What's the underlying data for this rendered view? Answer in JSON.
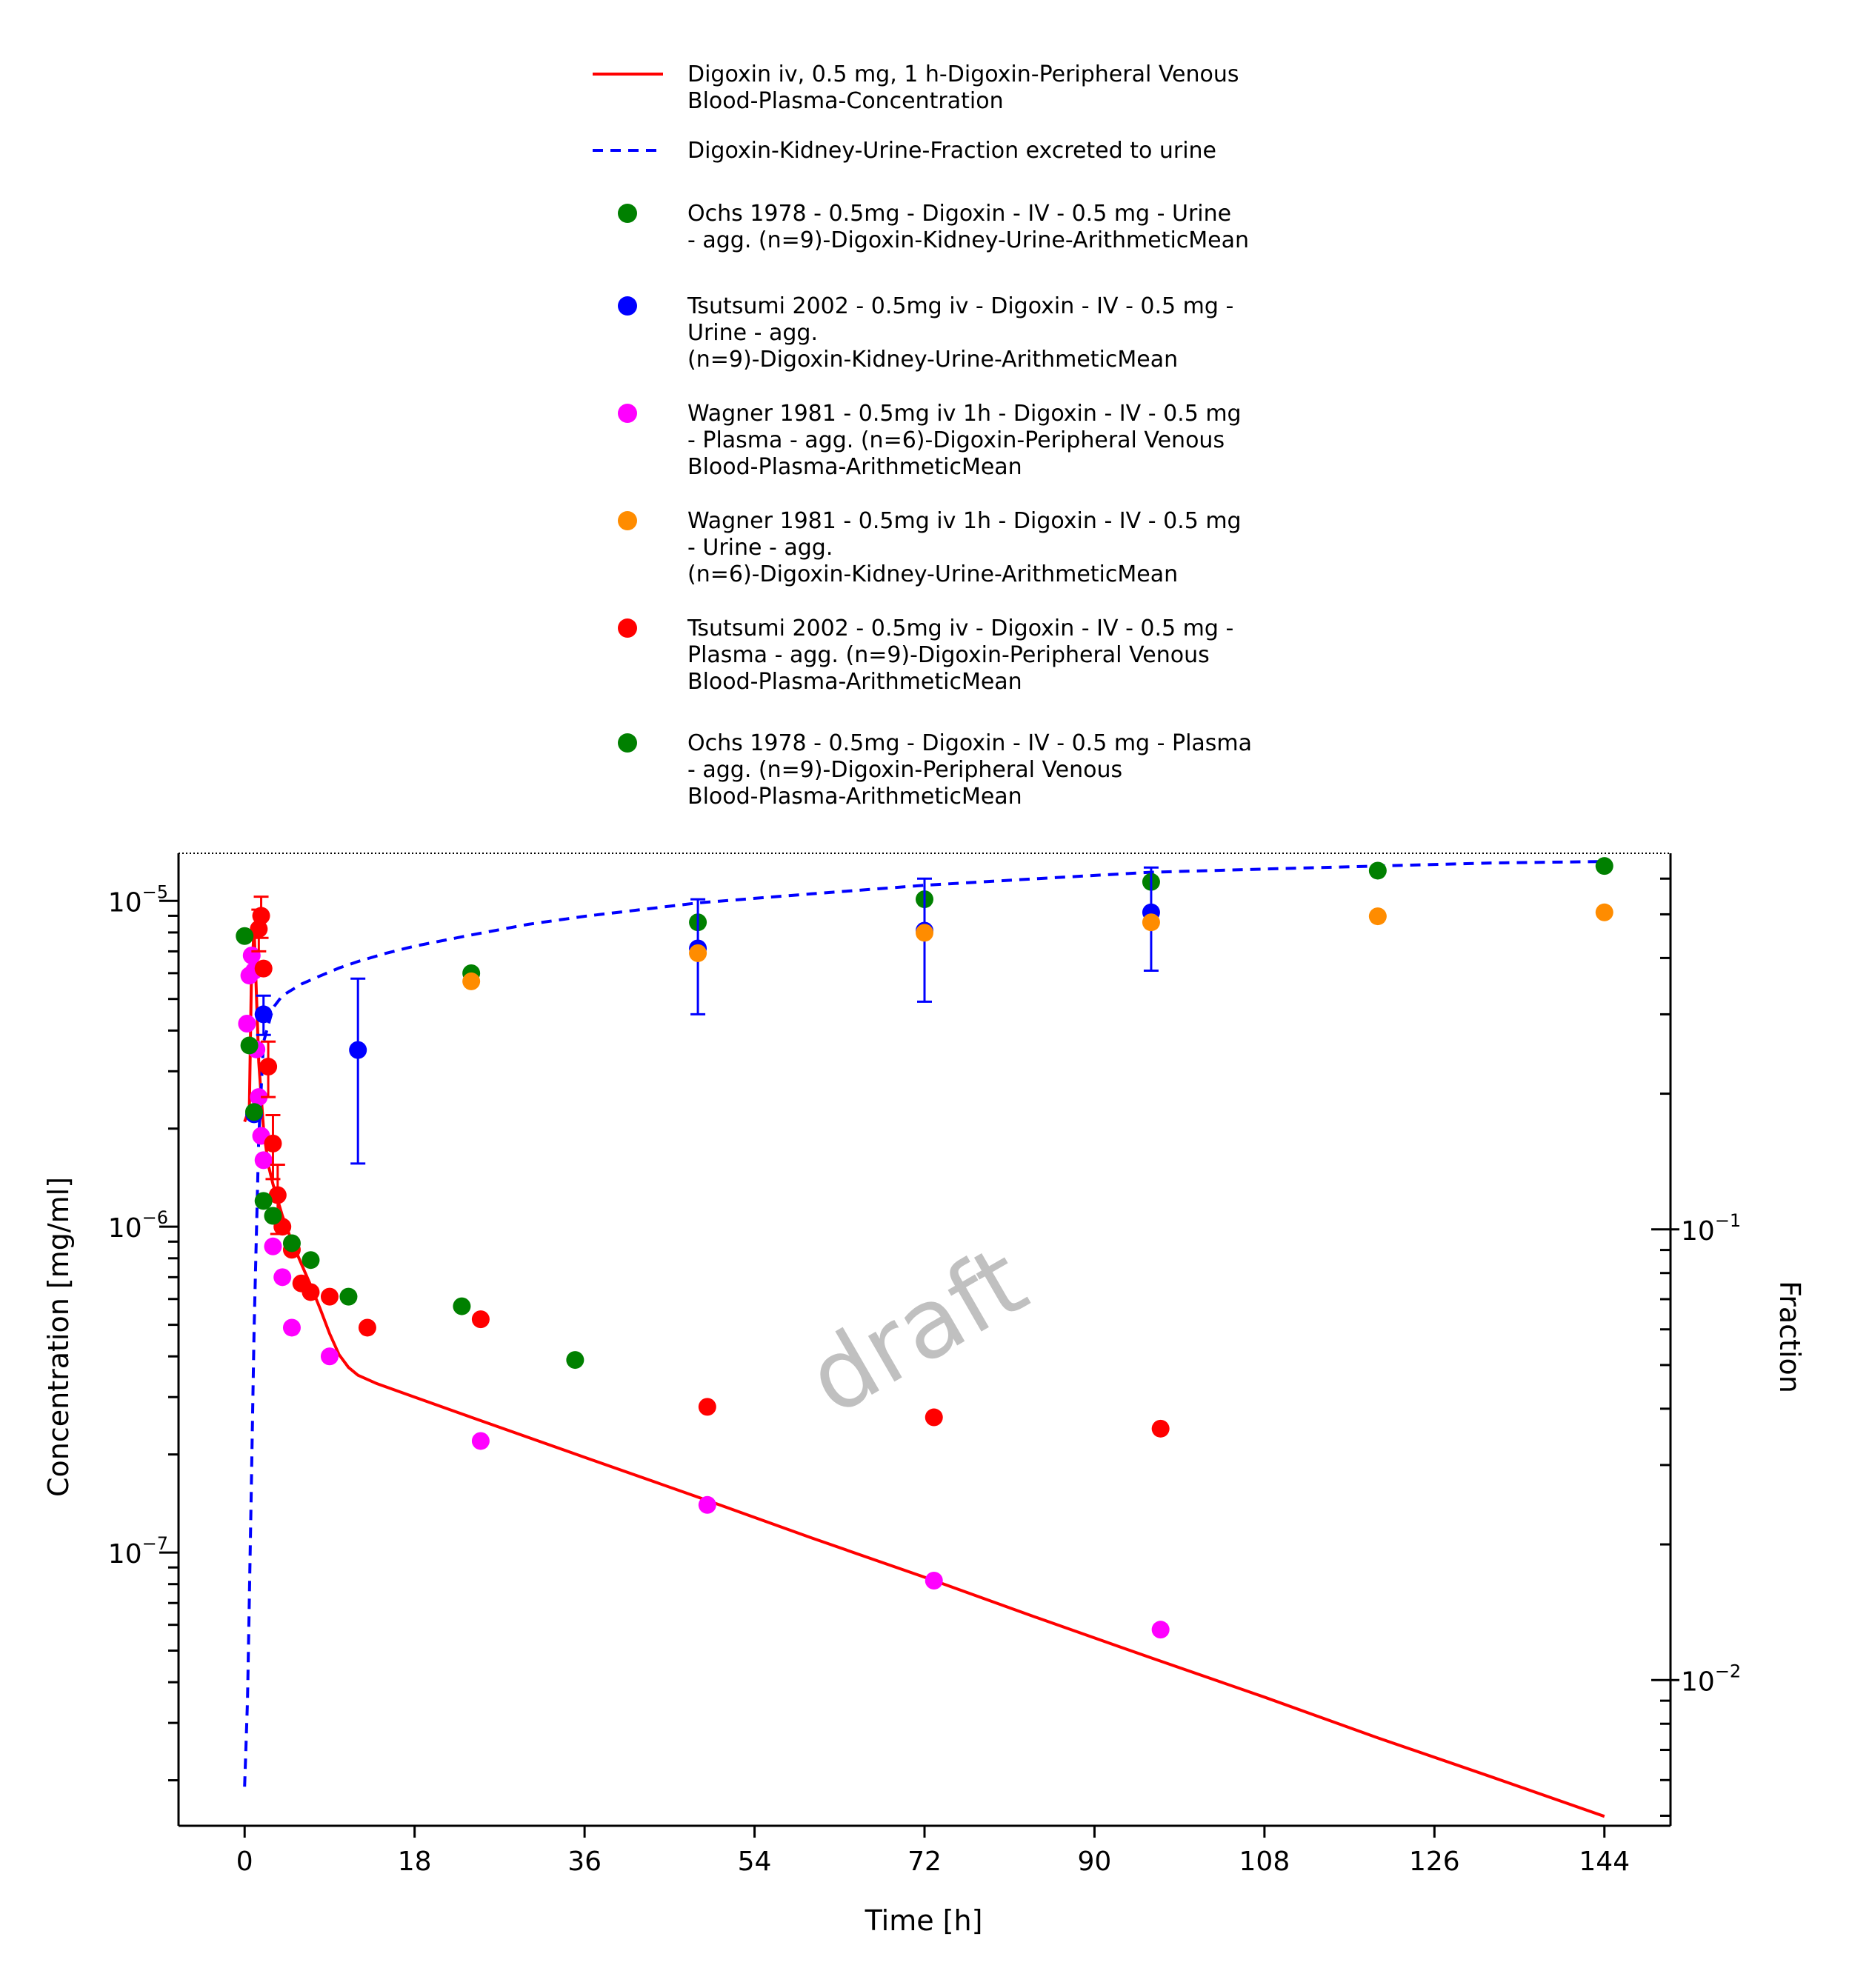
{
  "chart_data": {
    "type": "scatter",
    "watermark": "draft",
    "xlabel": "Time [h]",
    "ylabel": "Concentration [mg/ml]",
    "y2label": "Fraction",
    "xlim": [
      -7,
      151
    ],
    "ylim": [
      1.45e-08,
      1.4e-05
    ],
    "y2lim": [
      0.00475,
      0.683
    ],
    "yscale": "log",
    "y2scale": "log",
    "xticks": [
      0,
      18,
      36,
      54,
      72,
      90,
      108,
      126,
      144
    ],
    "xtick_labels": [
      "0",
      "18",
      "36",
      "54",
      "72",
      "90",
      "108",
      "126",
      "144"
    ],
    "yticks": [
      {
        "value": 1e-05,
        "base": "10",
        "exp": "−5"
      },
      {
        "value": 1e-06,
        "base": "10",
        "exp": "−6"
      },
      {
        "value": 1e-07,
        "base": "10",
        "exp": "−7"
      }
    ],
    "y2ticks": [
      {
        "value": 0.1,
        "base": "10",
        "exp": "−1"
      },
      {
        "value": 0.01,
        "base": "10",
        "exp": "−2"
      }
    ],
    "legend_position": "top",
    "series": [
      {
        "name": "Digoxin iv, 0.5 mg, 1 h-Digoxin-Peripheral Venous Blood-Plasma-Concentration",
        "kind": "line",
        "axis": "left",
        "color": "#ff0000",
        "dash": "solid",
        "x": [
          0,
          0.5,
          0.7,
          1.0,
          1.5,
          2.0,
          2.5,
          3,
          4,
          5,
          6,
          7,
          8,
          9,
          10,
          11,
          12,
          14,
          18,
          24,
          36,
          48,
          60,
          72,
          84,
          96,
          108,
          120,
          132,
          144
        ],
        "y": [
          2.1e-06,
          2.3e-06,
          5.5e-06,
          8.3e-06,
          3.2e-06,
          2e-06,
          1.55e-06,
          1.35e-06,
          1.08e-06,
          9e-07,
          7.7e-07,
          6.6e-07,
          5.6e-07,
          4.7e-07,
          4.05e-07,
          3.7e-07,
          3.5e-07,
          3.3e-07,
          3e-07,
          2.6e-07,
          1.96e-07,
          1.48e-07,
          1.11e-07,
          8.4e-08,
          6.3e-08,
          4.75e-08,
          3.6e-08,
          2.7e-08,
          2.05e-08,
          1.55e-08
        ]
      },
      {
        "name": "Digoxin-Kidney-Urine-Fraction excreted to urine",
        "kind": "line",
        "axis": "right",
        "color": "#0000ff",
        "dash": "dashed",
        "x": [
          0,
          0.3,
          0.6,
          1.0,
          1.5,
          2.0,
          3,
          4,
          6,
          8,
          10,
          12,
          15,
          18,
          24,
          30,
          36,
          48,
          60,
          72,
          84,
          96,
          108,
          120,
          132,
          144
        ],
        "y": [
          0.0058,
          0.009,
          0.02,
          0.06,
          0.16,
          0.26,
          0.31,
          0.33,
          0.35,
          0.365,
          0.38,
          0.393,
          0.41,
          0.425,
          0.45,
          0.475,
          0.495,
          0.53,
          0.555,
          0.58,
          0.6,
          0.62,
          0.63,
          0.64,
          0.65,
          0.655
        ]
      },
      {
        "name": "Ochs 1978 - 0.5mg - Digoxin - IV - 0.5 mg - Urine - agg. (n=9)-Digoxin-Kidney-Urine-ArithmeticMean",
        "kind": "scatter",
        "axis": "right",
        "color": "#008000",
        "x": [
          24,
          48,
          72,
          96,
          120,
          144
        ],
        "y": [
          0.37,
          0.48,
          0.54,
          0.59,
          0.625,
          0.64
        ]
      },
      {
        "name": "Tsutsumi 2002 - 0.5mg iv - Digoxin - IV - 0.5 mg - Urine - agg. (n=9)-Digoxin-Kidney-Urine-ArithmeticMean",
        "kind": "scatter",
        "axis": "right",
        "color": "#0000ff",
        "x": [
          1,
          2,
          12,
          48,
          72,
          96
        ],
        "y": [
          0.18,
          0.3,
          0.25,
          0.42,
          0.46,
          0.505
        ],
        "error": [
          0,
          0.03,
          0.11,
          0.12,
          0.14,
          0.13
        ]
      },
      {
        "name": "Wagner 1981 - 0.5mg iv 1h - Digoxin - IV - 0.5 mg - Plasma - agg. (n=6)-Digoxin-Peripheral Venous Blood-Plasma-ArithmeticMean",
        "kind": "scatter",
        "axis": "left",
        "color": "#ff00ff",
        "x": [
          0.25,
          0.5,
          0.75,
          1.0,
          1.25,
          1.5,
          1.75,
          2.0,
          3.0,
          4.0,
          5.0,
          9.0,
          25,
          49,
          73,
          97
        ],
        "y": [
          4.2e-06,
          5.9e-06,
          6.8e-06,
          6.1e-06,
          3.5e-06,
          2.5e-06,
          1.9e-06,
          1.6e-06,
          8.7e-07,
          7e-07,
          4.9e-07,
          4e-07,
          2.2e-07,
          1.4e-07,
          8.2e-08,
          5.8e-08
        ]
      },
      {
        "name": "Wagner 1981 - 0.5mg iv 1h - Digoxin - IV - 0.5 mg - Urine - agg. (n=6)-Digoxin-Kidney-Urine-ArithmeticMean",
        "kind": "scatter",
        "axis": "right",
        "color": "#ff8c00",
        "x": [
          24,
          48,
          72,
          96,
          120,
          144
        ],
        "y": [
          0.355,
          0.41,
          0.455,
          0.48,
          0.495,
          0.505
        ]
      },
      {
        "name": "Tsutsumi 2002 - 0.5mg iv - Digoxin - IV - 0.5 mg - Plasma - agg. (n=9)-Digoxin-Peripheral Venous Blood-Plasma-ArithmeticMean",
        "kind": "scatter",
        "axis": "left",
        "color": "#ff0000",
        "x": [
          1.5,
          1.75,
          2.0,
          2.5,
          3.0,
          3.5,
          4.0,
          5.0,
          6.0,
          7.0,
          9.0,
          13,
          25,
          49,
          73,
          97
        ],
        "y": [
          8.2e-06,
          9e-06,
          6.2e-06,
          3.1e-06,
          1.8e-06,
          1.25e-06,
          1e-06,
          8.5e-07,
          6.7e-07,
          6.3e-07,
          6.1e-07,
          4.9e-07,
          5.2e-07,
          2.8e-07,
          2.6e-07,
          2.4e-07
        ],
        "error": [
          1.2e-06,
          1.3e-06,
          0,
          6e-07,
          4e-07,
          3e-07,
          0,
          0,
          0,
          0,
          0,
          0,
          0,
          0,
          0,
          0
        ]
      },
      {
        "name": "Ochs 1978 - 0.5mg - Digoxin - IV - 0.5 mg - Plasma - agg. (n=9)-Digoxin-Peripheral Venous Blood-Plasma-ArithmeticMean",
        "kind": "scatter",
        "axis": "left",
        "color": "#008000",
        "x": [
          0,
          0.5,
          1.0,
          2.0,
          3.0,
          5.0,
          7.0,
          11,
          23,
          35
        ],
        "y": [
          7.8e-06,
          3.6e-06,
          2.25e-06,
          1.2e-06,
          1.08e-06,
          8.9e-07,
          7.9e-07,
          6.1e-07,
          5.7e-07,
          3.9e-07
        ]
      }
    ]
  }
}
